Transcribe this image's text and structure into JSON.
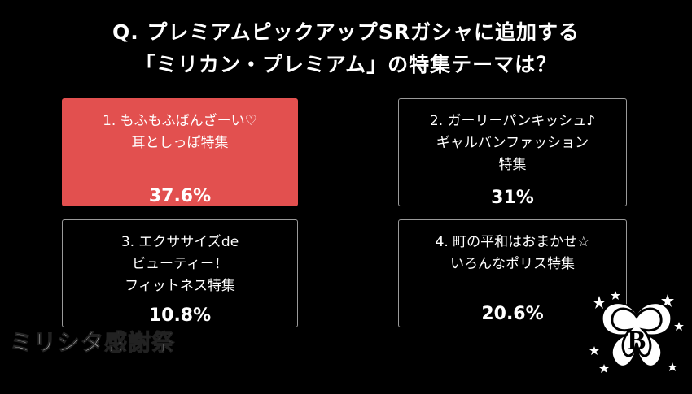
{
  "question": {
    "line1": "Q. プレミアムピックアップSRガシャに追加する",
    "line2": "「ミリカン・プレミアム」の特集テーマは？"
  },
  "options": [
    {
      "label": "1. もふもふばんざーい♡\n耳としっぽ特集",
      "percent": "37.6%",
      "value": 37.6,
      "selected": true
    },
    {
      "label": "2. ガーリーパンキッシュ♪\nギャルバンファッション\n特集",
      "percent": "31%",
      "value": 31,
      "selected": false
    },
    {
      "label": "3. エクササイズde\nビューティー！\nフィットネス特集",
      "percent": "10.8%",
      "value": 10.8,
      "selected": false
    },
    {
      "label": "4. 町の平和はおまかせ☆\nいろんなポリス特集",
      "percent": "20.6%",
      "value": 20.6,
      "selected": false
    }
  ],
  "event_logo": "ミリシタ感謝祭",
  "colors": {
    "selected": "#e2504f",
    "border": "#9a9a9a",
    "background": "#000000"
  },
  "emblem_icon": "butterfly-star-emblem-icon"
}
